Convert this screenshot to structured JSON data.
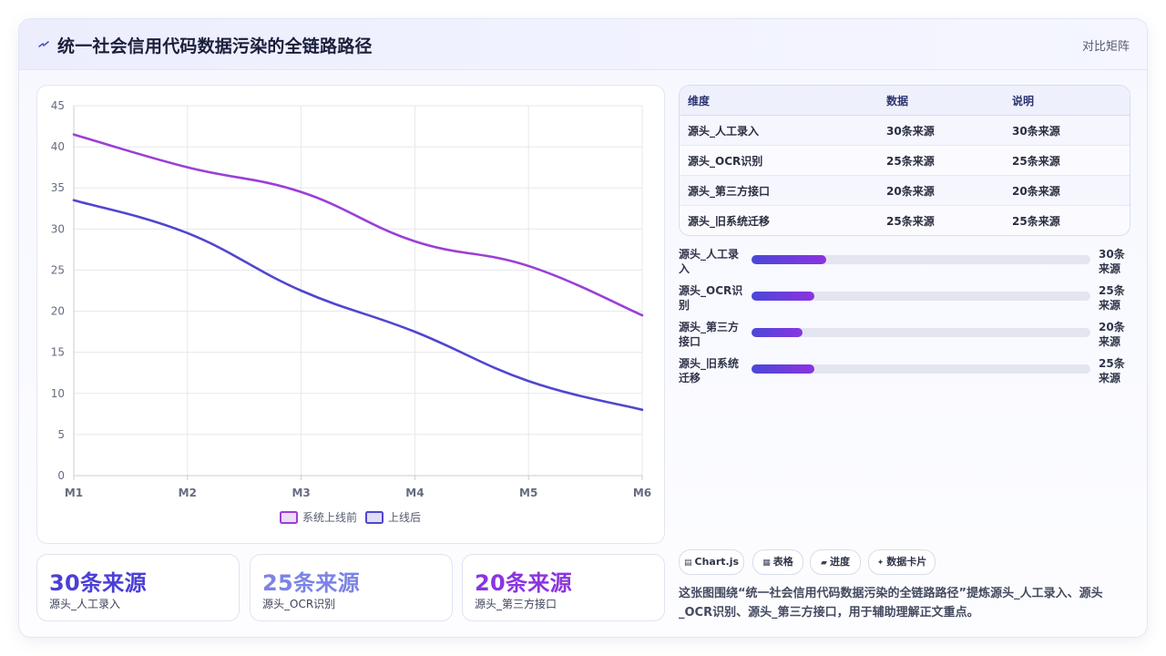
{
  "header": {
    "title": "统一社会信用代码数据污染的全链路路径",
    "tag": "对比矩阵"
  },
  "colors": {
    "series_before": "#9b3fd6",
    "series_after": "#5046cf",
    "stat_1": "#4b3fd6",
    "stat_2": "#7c83e6",
    "stat_3": "#8b34e0"
  },
  "chart_data": {
    "type": "line",
    "x": [
      "M1",
      "M2",
      "M3",
      "M4",
      "M5",
      "M6"
    ],
    "ylim": [
      0,
      45
    ],
    "yticks": [
      0,
      5,
      10,
      15,
      20,
      25,
      30,
      35,
      40,
      45
    ],
    "grid": true,
    "legend_position": "bottom",
    "series": [
      {
        "name": "系统上线前",
        "values": [
          41.5,
          37.5,
          34.5,
          28.5,
          25.5,
          19.5
        ]
      },
      {
        "name": "上线后",
        "values": [
          33.5,
          29.5,
          22.5,
          17.5,
          11.5,
          8
        ]
      }
    ]
  },
  "table": {
    "headers": [
      "维度",
      "数据",
      "说明"
    ],
    "rows": [
      [
        "源头_人工录入",
        "30条来源",
        "30条来源"
      ],
      [
        "源头_OCR识别",
        "25条来源",
        "25条来源"
      ],
      [
        "源头_第三方接口",
        "20条来源",
        "20条来源"
      ],
      [
        "源头_旧系统迁移",
        "25条来源",
        "25条来源"
      ]
    ]
  },
  "bars": [
    {
      "label": "源头_人工录入",
      "value_text": "30条来源",
      "fraction": 0.22
    },
    {
      "label": "源头_OCR识别",
      "value_text": "25条来源",
      "fraction": 0.185
    },
    {
      "label": "源头_第三方接口",
      "value_text": "20条来源",
      "fraction": 0.15
    },
    {
      "label": "源头_旧系统迁移",
      "value_text": "25条来源",
      "fraction": 0.185
    }
  ],
  "stats": [
    {
      "value": "30条来源",
      "label": "源头_人工录入"
    },
    {
      "value": "25条来源",
      "label": "源头_OCR识别"
    },
    {
      "value": "20条来源",
      "label": "源头_第三方接口"
    }
  ],
  "chips": [
    {
      "icon": "chart-icon",
      "glyph": "▤",
      "label": "Chart.js"
    },
    {
      "icon": "table-icon",
      "glyph": "▦",
      "label": "表格"
    },
    {
      "icon": "progress-icon",
      "glyph": "▰",
      "label": "进度"
    },
    {
      "icon": "sparkle-icon",
      "glyph": "✦",
      "label": "数据卡片"
    }
  ],
  "description": "这张图围绕“统一社会信用代码数据污染的全链路路径”提炼源头_人工录入、源头_OCR识别、源头_第三方接口，用于辅助理解正文重点。"
}
